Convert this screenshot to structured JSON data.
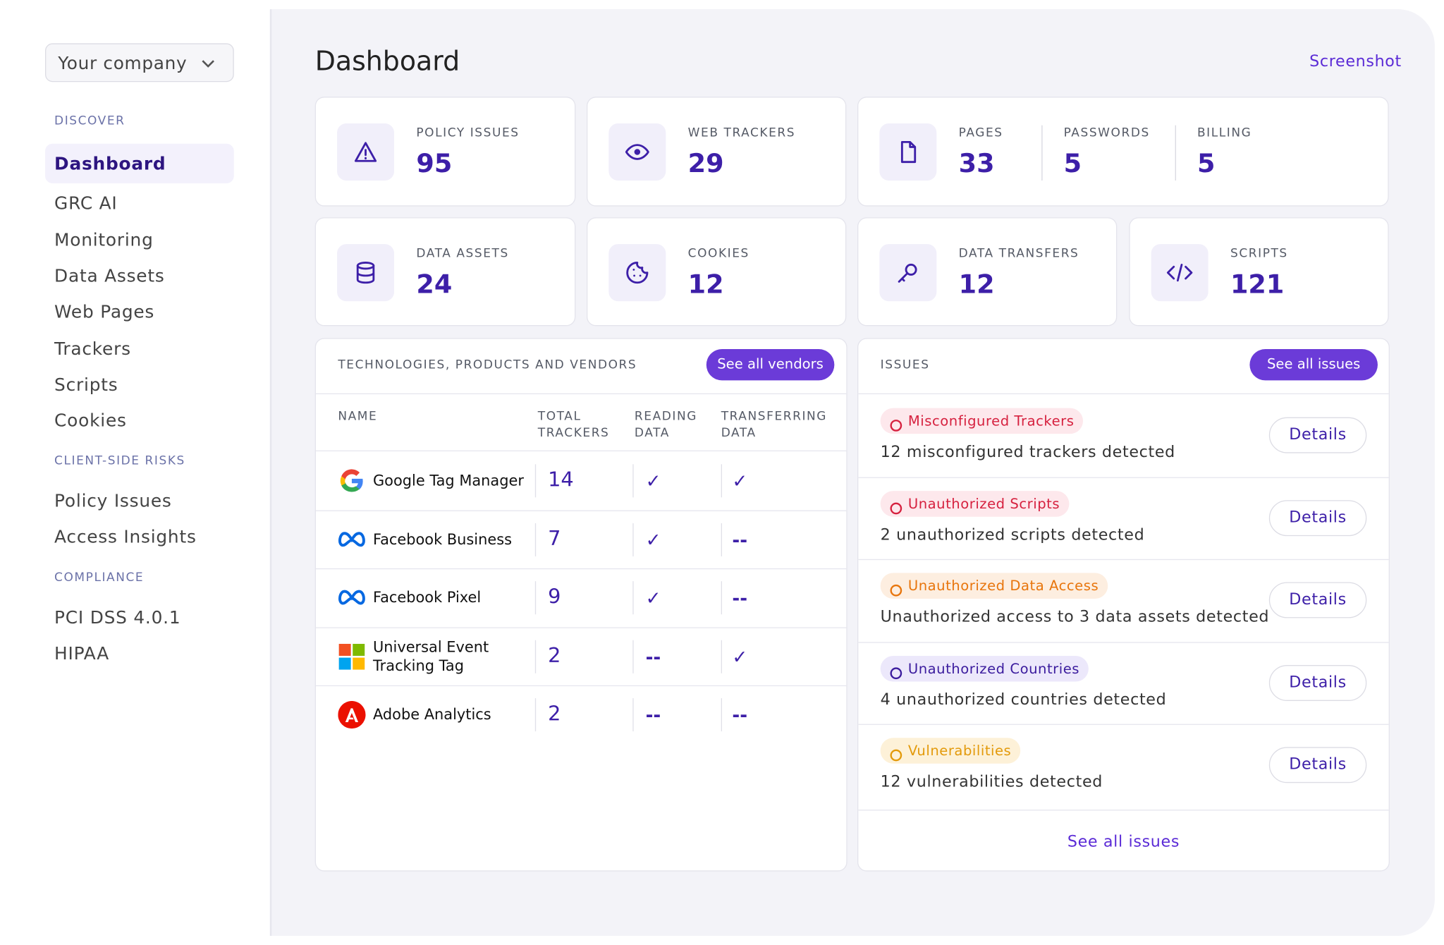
{
  "sidebar": {
    "company": "Your company",
    "sections": [
      {
        "heading": "DISCOVER",
        "items": [
          "Dashboard",
          "GRC AI",
          "Monitoring",
          "Data Assets",
          "Web Pages",
          "Trackers",
          "Scripts",
          "Cookies"
        ]
      },
      {
        "heading": "CLIENT-SIDE RISKS",
        "items": [
          "Policy Issues",
          "Access Insights"
        ]
      },
      {
        "heading": "COMPLIANCE",
        "items": [
          "PCI DSS 4.0.1",
          "HIPAA"
        ]
      }
    ]
  },
  "header": {
    "title": "Dashboard",
    "action": "Screenshot"
  },
  "stats": [
    {
      "metrics": [
        {
          "label": "POLICY ISSUES",
          "value": 95
        }
      ]
    },
    {
      "metrics": [
        {
          "label": "WEB TRACKERS",
          "value": 29
        }
      ]
    },
    {
      "metrics": [
        {
          "label": "PAGES",
          "value": 33
        },
        {
          "label": "PASSWORDS",
          "value": 5
        },
        {
          "label": "BILLING",
          "value": 5
        }
      ]
    },
    {
      "metrics": [
        {
          "label": "DATA ASSETS",
          "value": 24
        }
      ]
    },
    {
      "metrics": [
        {
          "label": "COOKIES",
          "value": 12
        }
      ]
    },
    {
      "metrics": [
        {
          "label": "DATA TRANSFERS",
          "value": 12
        }
      ]
    },
    {
      "metrics": [
        {
          "label": "SCRIPTS",
          "value": 121
        }
      ]
    }
  ],
  "vendors": {
    "title": "TECHNOLOGIES, PRODUCTS AND VENDORS",
    "button": "See all vendors",
    "columns": [
      "NAME",
      "TOTAL TRACKERS",
      "READING DATA",
      "TRANSFERRING DATA"
    ],
    "rows": [
      [
        "Google Tag Manager",
        14,
        "✓",
        "✓"
      ],
      [
        "Facebook Business",
        7,
        "✓",
        "--"
      ],
      [
        "Facebook Pixel",
        9,
        "✓",
        "--"
      ],
      [
        "Universal Event Tracking Tag",
        2,
        "--",
        "✓"
      ],
      [
        "Adobe Analytics",
        2,
        "--",
        "--"
      ]
    ]
  },
  "issues": {
    "title": "ISSUES",
    "button": "See all issues",
    "items": [
      {
        "badge": "Misconfigured Trackers",
        "text": "12 misconfigured trackers detected",
        "action": "Details"
      },
      {
        "badge": "Unauthorized Scripts",
        "text": "2 unauthorized scripts detected",
        "action": "Details"
      },
      {
        "badge": "Unauthorized Data Access",
        "text": "Unauthorized access to 3 data assets detected",
        "action": "Details"
      },
      {
        "badge": "Unauthorized Countries",
        "text": "4 unauthorized countries detected",
        "action": "Details"
      },
      {
        "badge": "Vulnerabilities",
        "text": "12 vulnerabilities detected",
        "action": "Details"
      }
    ],
    "footer": "See all issues"
  }
}
